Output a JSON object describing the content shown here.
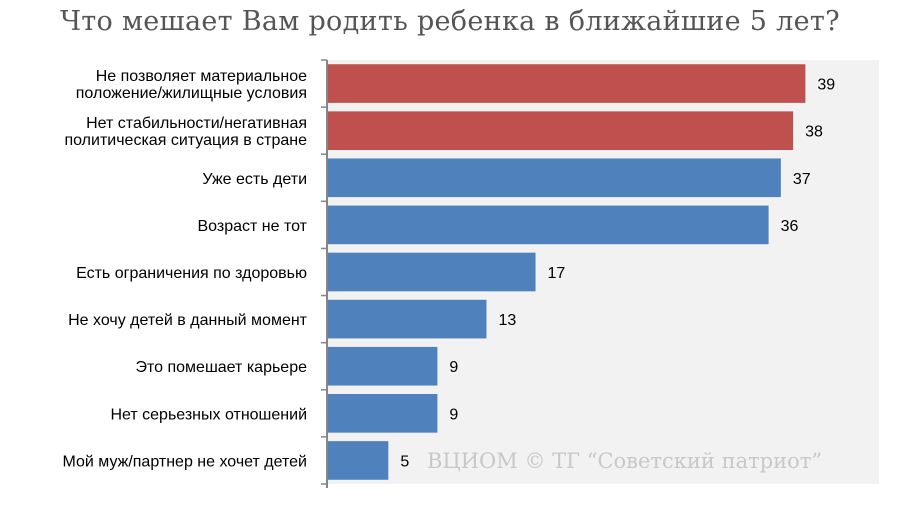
{
  "chart_data": {
    "type": "bar",
    "orientation": "horizontal",
    "title": "Что мешает Вам родить ребенка в ближайшие 5 лет?",
    "categories": [
      [
        "Не позволяет материальное",
        "положение/жилищные условия"
      ],
      [
        "Нет стабильности/негативная",
        "политическая ситуация в стране"
      ],
      [
        "Уже есть дети"
      ],
      [
        "Возраст не тот"
      ],
      [
        "Есть ограничения по здоровью"
      ],
      [
        "Не хочу детей в данный момент"
      ],
      [
        "Это помешает карьере"
      ],
      [
        "Нет серьезных отношений"
      ],
      [
        "Мой муж/партнер не хочет детей"
      ]
    ],
    "values": [
      39,
      38,
      37,
      36,
      17,
      13,
      9,
      9,
      5
    ],
    "bar_colors": [
      "#c0504d",
      "#c0504d",
      "#4f81bd",
      "#4f81bd",
      "#4f81bd",
      "#4f81bd",
      "#4f81bd",
      "#4f81bd",
      "#4f81bd"
    ],
    "xlim": [
      0,
      45
    ],
    "grid": false,
    "legend": "none"
  },
  "source_note": "ВЦИОМ © ТГ “Советский патриот”"
}
